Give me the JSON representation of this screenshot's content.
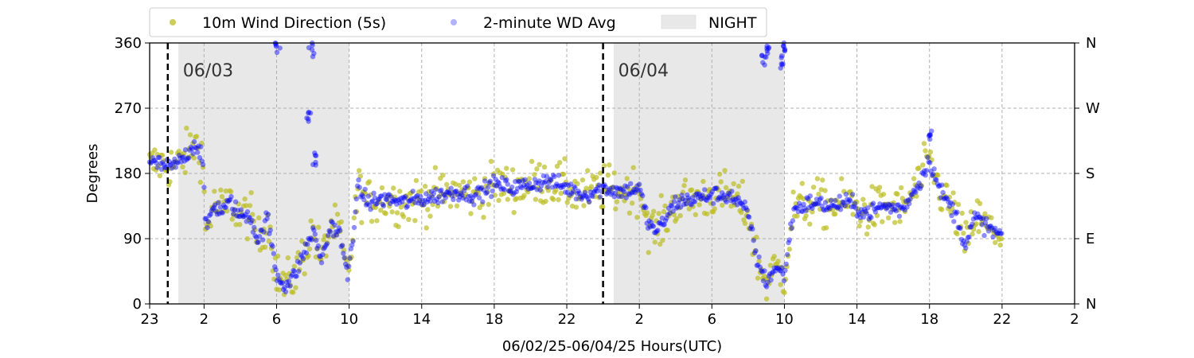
{
  "chart_data": {
    "type": "scatter",
    "xlabel": "06/02/25-06/04/25  Hours(UTC)",
    "ylabel": "Degrees",
    "ylim": [
      0,
      360
    ],
    "xlim": [
      "06/02 23:00",
      "06/05 02:00"
    ],
    "x_ticks": [
      {
        "time": "06/02 23:00",
        "label": "23"
      },
      {
        "time": "06/03 02:00",
        "label": "2"
      },
      {
        "time": "06/03 06:00",
        "label": "6"
      },
      {
        "time": "06/03 10:00",
        "label": "10"
      },
      {
        "time": "06/03 14:00",
        "label": "14"
      },
      {
        "time": "06/03 18:00",
        "label": "18"
      },
      {
        "time": "06/03 22:00",
        "label": "22"
      },
      {
        "time": "06/04 02:00",
        "label": "2"
      },
      {
        "time": "06/04 06:00",
        "label": "6"
      },
      {
        "time": "06/04 10:00",
        "label": "10"
      },
      {
        "time": "06/04 14:00",
        "label": "14"
      },
      {
        "time": "06/04 18:00",
        "label": "18"
      },
      {
        "time": "06/04 22:00",
        "label": "22"
      },
      {
        "time": "06/05 02:00",
        "label": "2"
      }
    ],
    "y_ticks": [
      0,
      90,
      180,
      270,
      360
    ],
    "y2_ticks": [
      {
        "value": 0,
        "label": "N"
      },
      {
        "value": 90,
        "label": "E"
      },
      {
        "value": 180,
        "label": "S"
      },
      {
        "value": 270,
        "label": "W"
      },
      {
        "value": 360,
        "label": "N"
      }
    ],
    "grid": true,
    "legend_position": "top",
    "day_markers": [
      {
        "time": "06/03 00:00",
        "label": "06/03"
      },
      {
        "time": "06/04 00:00",
        "label": "06/04"
      }
    ],
    "night_periods": [
      {
        "start": "06/03 00:35",
        "end": "06/03 10:00"
      },
      {
        "start": "06/04 00:35",
        "end": "06/04 10:00"
      }
    ],
    "series": [
      {
        "name": "10m Wind Direction (5s)",
        "color": "#bcbd22",
        "kind": "scatter-5s",
        "spread": 22,
        "points": [
          [
            "06/02 23:00",
            190
          ],
          [
            "06/02 23:30",
            195
          ],
          [
            "06/03 00:00",
            190
          ],
          [
            "06/03 00:30",
            192
          ],
          [
            "06/03 01:00",
            205
          ],
          [
            "06/03 01:30",
            222
          ],
          [
            "06/03 01:55",
            205
          ],
          [
            "06/03 02:05",
            100
          ],
          [
            "06/03 02:30",
            135
          ],
          [
            "06/03 03:00",
            130
          ],
          [
            "06/03 03:30",
            140
          ],
          [
            "06/03 04:00",
            120
          ],
          [
            "06/03 04:30",
            125
          ],
          [
            "06/03 05:00",
            85
          ],
          [
            "06/03 05:30",
            120
          ],
          [
            "06/03 06:00",
            40
          ],
          [
            "06/03 06:30",
            25
          ],
          [
            "06/03 07:00",
            40
          ],
          [
            "06/03 07:30",
            70
          ],
          [
            "06/03 08:00",
            100
          ],
          [
            "06/03 08:30",
            60
          ],
          [
            "06/03 09:00",
            110
          ],
          [
            "06/03 09:30",
            95
          ],
          [
            "06/03 09:55",
            35
          ],
          [
            "06/03 10:30",
            160
          ],
          [
            "06/03 11:00",
            140
          ],
          [
            "06/03 12:00",
            145
          ],
          [
            "06/03 13:00",
            140
          ],
          [
            "06/03 14:00",
            145
          ],
          [
            "06/03 15:00",
            150
          ],
          [
            "06/03 16:00",
            155
          ],
          [
            "06/03 17:00",
            150
          ],
          [
            "06/03 18:00",
            165
          ],
          [
            "06/03 19:00",
            160
          ],
          [
            "06/03 20:00",
            165
          ],
          [
            "06/03 21:00",
            170
          ],
          [
            "06/03 22:00",
            160
          ],
          [
            "06/03 23:00",
            150
          ],
          [
            "06/04 00:00",
            160
          ],
          [
            "06/04 01:00",
            155
          ],
          [
            "06/04 02:00",
            160
          ],
          [
            "06/04 02:30",
            110
          ],
          [
            "06/04 03:00",
            100
          ],
          [
            "06/04 04:00",
            140
          ],
          [
            "06/04 05:00",
            145
          ],
          [
            "06/04 06:00",
            150
          ],
          [
            "06/04 07:00",
            150
          ],
          [
            "06/04 08:00",
            125
          ],
          [
            "06/04 08:30",
            60
          ],
          [
            "06/04 09:00",
            30
          ],
          [
            "06/04 09:30",
            50
          ],
          [
            "06/04 10:00",
            40
          ],
          [
            "06/04 10:30",
            130
          ],
          [
            "06/04 11:30",
            140
          ],
          [
            "06/04 12:30",
            135
          ],
          [
            "06/04 13:30",
            140
          ],
          [
            "06/04 14:30",
            125
          ],
          [
            "06/04 15:30",
            135
          ],
          [
            "06/04 16:30",
            130
          ],
          [
            "06/04 17:30",
            170
          ],
          [
            "06/04 18:00",
            200
          ],
          [
            "06/04 18:30",
            160
          ],
          [
            "06/04 19:30",
            120
          ],
          [
            "06/04 20:00",
            80
          ],
          [
            "06/04 20:30",
            120
          ],
          [
            "06/04 21:30",
            100
          ],
          [
            "06/04 22:00",
            95
          ]
        ]
      },
      {
        "name": "2-minute WD Avg",
        "color": "#0000ff",
        "kind": "scatter-2min",
        "spread": 8,
        "points": [
          [
            "06/02 23:00",
            195
          ],
          [
            "06/02 23:30",
            193
          ],
          [
            "06/03 00:00",
            188
          ],
          [
            "06/03 00:30",
            193
          ],
          [
            "06/03 01:00",
            205
          ],
          [
            "06/03 01:30",
            222
          ],
          [
            "06/03 01:55",
            205
          ],
          [
            "06/03 02:05",
            100
          ],
          [
            "06/03 02:30",
            135
          ],
          [
            "06/03 03:00",
            130
          ],
          [
            "06/03 03:30",
            140
          ],
          [
            "06/03 04:00",
            120
          ],
          [
            "06/03 04:30",
            125
          ],
          [
            "06/03 05:00",
            85
          ],
          [
            "06/03 05:30",
            120
          ],
          [
            "06/03 06:00",
            40
          ],
          [
            "06/03 06:30",
            25
          ],
          [
            "06/03 07:00",
            40
          ],
          [
            "06/03 07:30",
            70
          ],
          [
            "06/03 08:00",
            100
          ],
          [
            "06/03 08:30",
            60
          ],
          [
            "06/03 09:00",
            110
          ],
          [
            "06/03 09:30",
            95
          ],
          [
            "06/03 09:55",
            35
          ],
          [
            "06/03 10:30",
            160
          ],
          [
            "06/03 11:00",
            140
          ],
          [
            "06/03 12:00",
            145
          ],
          [
            "06/03 13:00",
            140
          ],
          [
            "06/03 14:00",
            145
          ],
          [
            "06/03 15:00",
            150
          ],
          [
            "06/03 16:00",
            155
          ],
          [
            "06/03 17:00",
            150
          ],
          [
            "06/03 18:00",
            165
          ],
          [
            "06/03 19:00",
            160
          ],
          [
            "06/03 20:00",
            165
          ],
          [
            "06/03 21:00",
            170
          ],
          [
            "06/03 22:00",
            160
          ],
          [
            "06/03 23:00",
            150
          ],
          [
            "06/04 00:00",
            160
          ],
          [
            "06/04 01:00",
            155
          ],
          [
            "06/04 02:00",
            160
          ],
          [
            "06/04 02:30",
            110
          ],
          [
            "06/04 03:00",
            100
          ],
          [
            "06/04 04:00",
            140
          ],
          [
            "06/04 05:00",
            145
          ],
          [
            "06/04 06:00",
            150
          ],
          [
            "06/04 07:00",
            150
          ],
          [
            "06/04 08:00",
            125
          ],
          [
            "06/04 08:30",
            60
          ],
          [
            "06/04 09:00",
            30
          ],
          [
            "06/04 09:30",
            50
          ],
          [
            "06/04 10:00",
            40
          ],
          [
            "06/04 10:30",
            130
          ],
          [
            "06/04 11:30",
            140
          ],
          [
            "06/04 12:30",
            135
          ],
          [
            "06/04 13:30",
            140
          ],
          [
            "06/04 14:30",
            125
          ],
          [
            "06/04 15:30",
            135
          ],
          [
            "06/04 16:30",
            130
          ],
          [
            "06/04 17:30",
            170
          ],
          [
            "06/04 18:00",
            200
          ],
          [
            "06/04 18:30",
            160
          ],
          [
            "06/04 19:30",
            120
          ],
          [
            "06/04 20:00",
            80
          ],
          [
            "06/04 20:30",
            120
          ],
          [
            "06/04 21:30",
            100
          ],
          [
            "06/04 22:00",
            95
          ]
        ],
        "outliers": [
          [
            "06/03 06:00",
            352
          ],
          [
            "06/03 07:45",
            260
          ],
          [
            "06/03 07:55",
            355
          ],
          [
            "06/03 08:10",
            205
          ],
          [
            "06/04 08:50",
            340
          ],
          [
            "06/04 09:05",
            355
          ],
          [
            "06/04 09:50",
            330
          ],
          [
            "06/04 10:00",
            350
          ],
          [
            "06/04 18:00",
            235
          ]
        ]
      }
    ],
    "night_legend_label": "NIGHT"
  }
}
